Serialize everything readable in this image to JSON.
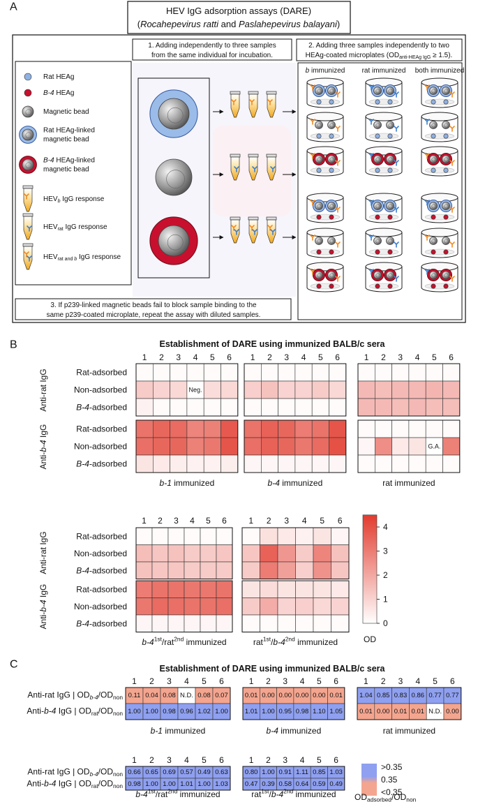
{
  "panel_a": {
    "label": "A",
    "title": [
      {
        "t": "HEV IgG adsorption assays (DARE)"
      }
    ],
    "subtitle": [
      {
        "t": "("
      },
      {
        "t": "Rocahepevirus ratti",
        "i": 1
      },
      {
        "t": " and "
      },
      {
        "t": "Paslahepevirus balayani",
        "i": 1
      },
      {
        "t": ")"
      }
    ],
    "step1": [
      [
        {
          "t": "1. Adding independently to three samples"
        }
      ],
      [
        {
          "t": "from the same individual for incubation."
        }
      ]
    ],
    "step2": [
      [
        {
          "t": "2. Adding three samples independently to two"
        }
      ],
      [
        {
          "t": "HEAg-coated microplates (OD"
        },
        {
          "t": "anti-HEAg IgG",
          "sub": 1
        },
        {
          "t": " ≥ 1.5)."
        }
      ]
    ],
    "step3": [
      [
        {
          "t": "3. If p239-linked magnetic beads fail to block sample binding to the"
        }
      ],
      [
        {
          "t": "same p239-coated microplate, repeat the assay with diluted samples."
        }
      ]
    ],
    "plate_headers": [
      [
        {
          "t": "b",
          "i": 1
        },
        {
          "t": " immunized"
        }
      ],
      [
        {
          "t": "rat immunized"
        }
      ],
      [
        {
          "t": "both immunized"
        }
      ]
    ],
    "legend": [
      {
        "lines": [
          [
            {
              "t": "Rat HEAg"
            }
          ]
        ]
      },
      {
        "lines": [
          [
            {
              "t": "B-4",
              "i": 1
            },
            {
              "t": " HEAg"
            }
          ]
        ]
      },
      {
        "lines": [
          [
            {
              "t": "Magnetic bead"
            }
          ]
        ]
      },
      {
        "lines": [
          [
            {
              "t": "Rat HEAg-linked"
            }
          ],
          [
            {
              "t": "magnetic bead"
            }
          ]
        ]
      },
      {
        "lines": [
          [
            {
              "t": "B-4",
              "i": 1
            },
            {
              "t": " HEAg-linked"
            }
          ],
          [
            {
              "t": "magnetic bead"
            }
          ]
        ]
      },
      {
        "lines": [
          [
            {
              "t": "HEV"
            },
            {
              "t": "b",
              "sub": 1,
              "i": 1
            },
            {
              "t": " IgG response"
            }
          ]
        ]
      },
      {
        "lines": [
          [
            {
              "t": "HEV"
            },
            {
              "t": "rat",
              "sub": 1
            },
            {
              "t": " IgG response"
            }
          ]
        ]
      },
      {
        "lines": [
          [
            {
              "t": "HEV"
            },
            {
              "t": "rat and ",
              "sub": 1
            },
            {
              "t": "b",
              "sub": 1,
              "i": 1
            },
            {
              "t": " IgG response"
            }
          ]
        ]
      }
    ]
  },
  "panel_b": {
    "label": "B",
    "type": "heatmap",
    "title": "Establishment of DARE using immunized BALB/c sera",
    "zlim": [
      0,
      4.5
    ],
    "zticks": [
      0,
      1,
      2,
      3,
      4
    ],
    "colorbar_label": "OD",
    "color_low": "#ffffff",
    "color_high": "#e23b2e",
    "row_labels": [
      [
        {
          "t": "Rat-adsorbed"
        }
      ],
      [
        {
          "t": "Non-adsorbed"
        }
      ],
      [
        {
          "t": "B-4",
          "i": 1
        },
        {
          "t": "-adsorbed"
        }
      ]
    ],
    "block_labels": [
      [
        {
          "t": "Anti-rat IgG"
        }
      ],
      [
        {
          "t": "Anti-"
        },
        {
          "t": "b-4",
          "i": 1
        },
        {
          "t": " IgG"
        }
      ]
    ],
    "sections": [
      {
        "groups": [
          {
            "name": [
              {
                "t": "b-1",
                "i": 1
              },
              {
                "t": " immunized"
              }
            ],
            "columns": [
              1,
              2,
              3,
              4,
              5,
              6
            ],
            "values": [
              [
                0.1,
                0.1,
                0.1,
                0.1,
                0.1,
                0.1
              ],
              [
                1.2,
                1.0,
                0.9,
                null,
                0.8,
                0.9
              ],
              [
                0.3,
                0.1,
                0.1,
                0.1,
                0.1,
                0.1
              ],
              [
                3.2,
                3.5,
                3.4,
                2.8,
                2.9,
                3.8
              ],
              [
                3.3,
                3.5,
                3.5,
                2.9,
                3.1,
                3.9
              ],
              [
                0.6,
                0.5,
                0.4,
                0.3,
                0.3,
                0.4
              ]
            ],
            "annotations": [
              {
                "row": 1,
                "col": 3,
                "text": "Neg."
              }
            ]
          },
          {
            "name": [
              {
                "t": "b-4",
                "i": 1
              },
              {
                "t": " immunized"
              }
            ],
            "columns": [
              1,
              2,
              3,
              4,
              5,
              6
            ],
            "values": [
              [
                0.1,
                0.1,
                0.1,
                0.1,
                0.1,
                0.1
              ],
              [
                1.1,
                1.4,
                1.0,
                1.0,
                1.2,
                0.9
              ],
              [
                0.1,
                0.1,
                0.1,
                0.1,
                0.1,
                0.1
              ],
              [
                3.2,
                3.6,
                3.5,
                3.0,
                3.2,
                3.9
              ],
              [
                3.3,
                3.6,
                3.5,
                3.1,
                3.4,
                4.0
              ],
              [
                0.2,
                0.2,
                0.2,
                0.2,
                0.2,
                0.2
              ]
            ]
          },
          {
            "name": [
              {
                "t": "rat immunized"
              }
            ],
            "columns": [
              1,
              2,
              3,
              4,
              5,
              6
            ],
            "values": [
              [
                0.1,
                0.1,
                0.1,
                0.1,
                0.1,
                0.1
              ],
              [
                1.6,
                1.5,
                1.6,
                1.6,
                1.7,
                1.6
              ],
              [
                1.6,
                1.6,
                1.5,
                1.6,
                1.5,
                1.5
              ],
              [
                0.1,
                0.1,
                0.1,
                0.1,
                0.1,
                0.1
              ],
              [
                0.2,
                2.6,
                0.5,
                0.6,
                null,
                2.9
              ],
              [
                0.1,
                0.1,
                0.1,
                0.1,
                0.1,
                0.1
              ]
            ],
            "annotations": [
              {
                "row": 4,
                "col": 4,
                "text": "G.A."
              }
            ]
          }
        ]
      },
      {
        "groups": [
          {
            "name": [
              {
                "t": "b-4",
                "i": 1
              },
              {
                "t": "1st",
                "sup": 1
              },
              {
                "t": "/rat"
              },
              {
                "t": "2nd",
                "sup": 1
              },
              {
                "t": " immunized"
              }
            ],
            "columns": [
              1,
              2,
              3,
              4,
              5,
              6
            ],
            "values": [
              [
                0.1,
                0.1,
                0.1,
                0.1,
                0.1,
                0.1
              ],
              [
                1.5,
                1.3,
                1.4,
                1.2,
                1.2,
                1.3
              ],
              [
                1.4,
                1.3,
                1.3,
                1.2,
                1.2,
                1.2
              ],
              [
                3.0,
                3.2,
                3.2,
                3.1,
                3.1,
                3.2
              ],
              [
                3.1,
                3.4,
                3.3,
                3.2,
                3.2,
                3.3
              ],
              [
                0.2,
                0.2,
                0.2,
                0.2,
                0.2,
                0.2
              ]
            ]
          },
          {
            "name": [
              {
                "t": "rat"
              },
              {
                "t": "1st",
                "sup": 1
              },
              {
                "t": "/"
              },
              {
                "t": "b-4",
                "i": 1
              },
              {
                "t": "2nd",
                "sup": 1
              },
              {
                "t": " immunized"
              }
            ],
            "columns": [
              1,
              2,
              3,
              4,
              5,
              6
            ],
            "values": [
              [
                0.1,
                0.7,
                0.5,
                0.3,
                0.6,
                0.2
              ],
              [
                1.3,
                3.6,
                2.4,
                1.2,
                2.8,
                1.4
              ],
              [
                1.2,
                3.0,
                2.2,
                1.1,
                2.5,
                1.3
              ],
              [
                0.6,
                0.8,
                0.6,
                0.6,
                0.6,
                0.5
              ],
              [
                1.2,
                1.9,
                1.0,
                1.1,
                0.9,
                1.0
              ],
              [
                0.1,
                0.1,
                0.1,
                0.1,
                0.1,
                0.1
              ]
            ]
          }
        ]
      }
    ]
  },
  "panel_c": {
    "label": "C",
    "type": "threshold-table",
    "title": "Establishment of DARE using immunized BALB/c sera",
    "threshold": 0.35,
    "color_above": "#8fa0f0",
    "color_below": "#f4a58f",
    "legend_labels": [
      ">0.35",
      "0.35",
      "<0.35"
    ],
    "legend_title": [
      {
        "t": "OD"
      },
      {
        "t": "adsorbed",
        "sub": 1
      },
      {
        "t": "/OD"
      },
      {
        "t": "non",
        "sub": 1
      }
    ],
    "row_labels": [
      [
        {
          "t": "Anti-rat IgG | OD"
        },
        {
          "t": "b-4",
          "sub": 1,
          "i": 1
        },
        {
          "t": "/OD"
        },
        {
          "t": "non",
          "sub": 1
        }
      ],
      [
        {
          "t": "Anti-"
        },
        {
          "t": "b-4",
          "i": 1
        },
        {
          "t": " IgG | OD"
        },
        {
          "t": "rat",
          "sub": 1
        },
        {
          "t": "/OD"
        },
        {
          "t": "non",
          "sub": 1
        }
      ]
    ],
    "sections": [
      {
        "groups": [
          {
            "name": [
              {
                "t": "b-1",
                "i": 1
              },
              {
                "t": " immunized"
              }
            ],
            "columns": [
              1,
              2,
              3,
              4,
              5,
              6
            ],
            "values": [
              [
                0.11,
                0.04,
                0.08,
                null,
                0.08,
                0.07
              ],
              [
                1,
                1,
                0.98,
                0.96,
                1.02,
                1
              ]
            ],
            "value_labels": [
              [
                "0.11",
                "0.04",
                "0.08",
                "N.D.",
                "0.08",
                "0.07"
              ],
              [
                "1.00",
                "1.00",
                "0.98",
                "0.96",
                "1.02",
                "1.00"
              ]
            ]
          },
          {
            "name": [
              {
                "t": "b-4",
                "i": 1
              },
              {
                "t": " immunized"
              }
            ],
            "columns": [
              1,
              2,
              3,
              4,
              5,
              6
            ],
            "values": [
              [
                0.01,
                0,
                0,
                0,
                0,
                0.01
              ],
              [
                1.01,
                1,
                0.95,
                0.98,
                1.1,
                1.05
              ]
            ],
            "value_labels": [
              [
                "0.01",
                "0.00",
                "0.00",
                "0.00",
                "0.00",
                "0.01"
              ],
              [
                "1.01",
                "1.00",
                "0.95",
                "0.98",
                "1.10",
                "1.05"
              ]
            ]
          },
          {
            "name": [
              {
                "t": "rat immunized"
              }
            ],
            "columns": [
              1,
              2,
              3,
              4,
              5,
              6
            ],
            "values": [
              [
                1.04,
                0.85,
                0.83,
                0.86,
                0.77,
                0.77
              ],
              [
                0.01,
                0,
                0.01,
                0.01,
                null,
                0
              ]
            ],
            "value_labels": [
              [
                "1.04",
                "0.85",
                "0.83",
                "0.86",
                "0.77",
                "0.77"
              ],
              [
                "0.01",
                "0.00",
                "0.01",
                "0.01",
                "N.D.",
                "0.00"
              ]
            ]
          }
        ]
      },
      {
        "groups": [
          {
            "name": [
              {
                "t": "b-4",
                "i": 1
              },
              {
                "t": "1st",
                "sup": 1
              },
              {
                "t": "/rat"
              },
              {
                "t": "2nd",
                "sup": 1
              },
              {
                "t": " immunized"
              }
            ],
            "columns": [
              1,
              2,
              3,
              4,
              5,
              6
            ],
            "values": [
              [
                0.66,
                0.65,
                0.69,
                0.57,
                0.49,
                0.63
              ],
              [
                0.98,
                1,
                1,
                1.01,
                1,
                1.03
              ]
            ],
            "value_labels": [
              [
                "0.66",
                "0.65",
                "0.69",
                "0.57",
                "0.49",
                "0.63"
              ],
              [
                "0.98",
                "1.00",
                "1.00",
                "1.01",
                "1.00",
                "1.03"
              ]
            ]
          },
          {
            "name": [
              {
                "t": "rat"
              },
              {
                "t": "1st",
                "sup": 1
              },
              {
                "t": "/"
              },
              {
                "t": "b-4",
                "i": 1
              },
              {
                "t": "2nd",
                "sup": 1
              },
              {
                "t": " immunized"
              }
            ],
            "columns": [
              1,
              2,
              3,
              4,
              5,
              6
            ],
            "values": [
              [
                0.8,
                1,
                0.91,
                1.11,
                0.85,
                1.03
              ],
              [
                0.47,
                0.39,
                0.58,
                0.64,
                0.59,
                0.49
              ]
            ],
            "value_labels": [
              [
                "0.80",
                "1.00",
                "0.91",
                "1.11",
                "0.85",
                "1.03"
              ],
              [
                "0.47",
                "0.39",
                "0.58",
                "0.64",
                "0.59",
                "0.49"
              ]
            ]
          }
        ]
      }
    ]
  }
}
